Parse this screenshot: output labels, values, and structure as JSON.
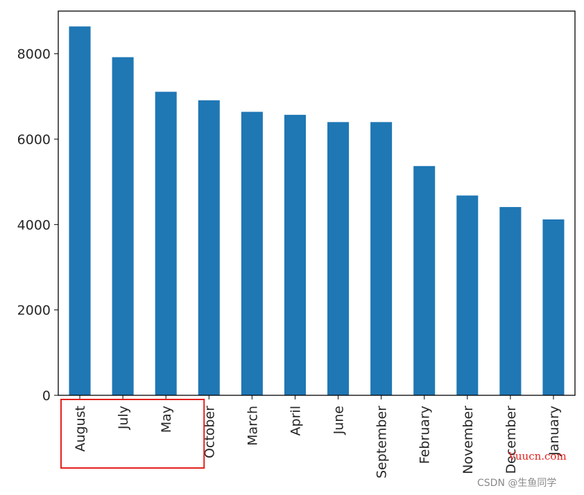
{
  "chart_data": {
    "type": "bar",
    "categories": [
      "August",
      "July",
      "May",
      "October",
      "March",
      "April",
      "June",
      "September",
      "February",
      "November",
      "December",
      "January"
    ],
    "values": [
      8640,
      7920,
      7110,
      6910,
      6640,
      6570,
      6400,
      6400,
      5370,
      4680,
      4410,
      4120
    ],
    "ylim": [
      0,
      9000
    ],
    "yticks": [
      0,
      2000,
      4000,
      6000,
      8000
    ],
    "bar_color": "#1f77b4",
    "grid": false,
    "legend": "none",
    "highlight": {
      "categories": [
        "August",
        "July",
        "May"
      ],
      "color": "#e3211c"
    }
  },
  "watermarks": {
    "primary": "Vuucn.com",
    "primary_color": "#e3211c",
    "secondary": "CSDN @生鱼同学"
  }
}
